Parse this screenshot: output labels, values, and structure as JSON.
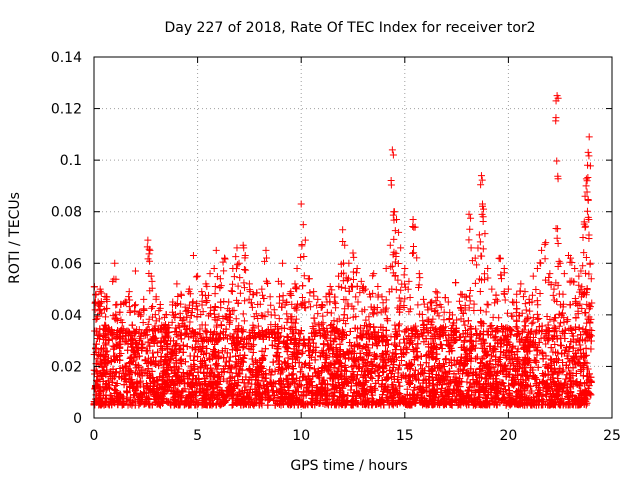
{
  "chart_data": {
    "type": "scatter",
    "title": "Day 227 of 2018, Rate Of TEC Index for receiver tor2",
    "xlabel": "GPS time / hours",
    "ylabel": "ROTI / TECUs",
    "xlim": [
      0,
      25
    ],
    "ylim": [
      0,
      0.14
    ],
    "xticks": [
      0,
      5,
      10,
      15,
      20,
      25
    ],
    "xtick_labels": [
      "0",
      "5",
      "10",
      "15",
      "20",
      "25"
    ],
    "yticks": [
      0,
      0.02,
      0.04,
      0.06,
      0.08,
      0.1,
      0.12,
      0.14
    ],
    "ytick_labels": [
      "0",
      "0.02",
      "0.04",
      "0.06",
      "0.08",
      "0.1",
      "0.12",
      "0.14"
    ],
    "grid": true,
    "marker": "+",
    "color": "#ff0000",
    "series": [
      {
        "name": "ROTI",
        "points": [
          [
            0.1,
            0.048
          ],
          [
            0.2,
            0.045
          ],
          [
            0.3,
            0.05
          ],
          [
            0.5,
            0.042
          ],
          [
            0.6,
            0.046
          ],
          [
            0.7,
            0.035
          ],
          [
            0.9,
            0.053
          ],
          [
            1.0,
            0.06
          ],
          [
            1.1,
            0.044
          ],
          [
            1.3,
            0.038
          ],
          [
            1.5,
            0.045
          ],
          [
            1.7,
            0.049
          ],
          [
            1.8,
            0.032
          ],
          [
            2.0,
            0.057
          ],
          [
            2.2,
            0.041
          ],
          [
            2.4,
            0.046
          ],
          [
            2.6,
            0.069
          ],
          [
            2.7,
            0.065
          ],
          [
            2.8,
            0.053
          ],
          [
            3.0,
            0.047
          ],
          [
            3.2,
            0.044
          ],
          [
            3.4,
            0.039
          ],
          [
            3.6,
            0.036
          ],
          [
            3.8,
            0.045
          ],
          [
            4.0,
            0.052
          ],
          [
            4.2,
            0.048
          ],
          [
            4.4,
            0.043
          ],
          [
            4.6,
            0.05
          ],
          [
            4.8,
            0.063
          ],
          [
            5.0,
            0.055
          ],
          [
            5.2,
            0.049
          ],
          [
            5.4,
            0.052
          ],
          [
            5.6,
            0.056
          ],
          [
            5.8,
            0.058
          ],
          [
            5.9,
            0.065
          ],
          [
            6.1,
            0.054
          ],
          [
            6.3,
            0.062
          ],
          [
            6.5,
            0.045
          ],
          [
            6.7,
            0.058
          ],
          [
            6.9,
            0.066
          ],
          [
            7.0,
            0.06
          ],
          [
            7.2,
            0.067
          ],
          [
            7.3,
            0.063
          ],
          [
            7.5,
            0.052
          ],
          [
            7.7,
            0.048
          ],
          [
            7.9,
            0.044
          ],
          [
            8.1,
            0.05
          ],
          [
            8.3,
            0.065
          ],
          [
            8.5,
            0.047
          ],
          [
            8.7,
            0.042
          ],
          [
            8.9,
            0.053
          ],
          [
            9.1,
            0.06
          ],
          [
            9.3,
            0.045
          ],
          [
            9.5,
            0.049
          ],
          [
            9.7,
            0.052
          ],
          [
            9.8,
            0.058
          ],
          [
            10.0,
            0.083
          ],
          [
            10.1,
            0.075
          ],
          [
            10.2,
            0.069
          ],
          [
            10.4,
            0.054
          ],
          [
            10.6,
            0.049
          ],
          [
            10.8,
            0.046
          ],
          [
            11.0,
            0.044
          ],
          [
            11.2,
            0.047
          ],
          [
            11.4,
            0.051
          ],
          [
            11.6,
            0.045
          ],
          [
            11.8,
            0.055
          ],
          [
            12.0,
            0.073
          ],
          [
            12.1,
            0.067
          ],
          [
            12.3,
            0.06
          ],
          [
            12.5,
            0.064
          ],
          [
            12.7,
            0.058
          ],
          [
            12.9,
            0.053
          ],
          [
            13.1,
            0.05
          ],
          [
            13.3,
            0.048
          ],
          [
            13.5,
            0.056
          ],
          [
            13.7,
            0.051
          ],
          [
            13.9,
            0.047
          ],
          [
            14.1,
            0.058
          ],
          [
            14.3,
            0.067
          ],
          [
            14.4,
            0.104
          ],
          [
            14.45,
            0.102
          ],
          [
            14.5,
            0.08
          ],
          [
            14.6,
            0.077
          ],
          [
            14.7,
            0.072
          ],
          [
            14.8,
            0.066
          ],
          [
            15.0,
            0.058
          ],
          [
            15.2,
            0.053
          ],
          [
            15.4,
            0.077
          ],
          [
            15.5,
            0.074
          ],
          [
            15.7,
            0.056
          ],
          [
            15.9,
            0.046
          ],
          [
            16.1,
            0.043
          ],
          [
            16.3,
            0.045
          ],
          [
            16.5,
            0.049
          ],
          [
            16.7,
            0.044
          ],
          [
            16.9,
            0.041
          ],
          [
            17.1,
            0.045
          ],
          [
            17.3,
            0.04
          ],
          [
            17.5,
            0.038
          ],
          [
            17.7,
            0.048
          ],
          [
            17.9,
            0.047
          ],
          [
            18.1,
            0.079
          ],
          [
            18.2,
            0.066
          ],
          [
            18.4,
            0.062
          ],
          [
            18.6,
            0.071
          ],
          [
            18.7,
            0.094
          ],
          [
            18.75,
            0.083
          ],
          [
            18.8,
            0.081
          ],
          [
            19.0,
            0.058
          ],
          [
            19.2,
            0.05
          ],
          [
            19.4,
            0.046
          ],
          [
            19.6,
            0.062
          ],
          [
            19.8,
            0.058
          ],
          [
            20.0,
            0.05
          ],
          [
            20.2,
            0.045
          ],
          [
            20.4,
            0.048
          ],
          [
            20.6,
            0.052
          ],
          [
            20.8,
            0.049
          ],
          [
            21.0,
            0.046
          ],
          [
            21.2,
            0.055
          ],
          [
            21.4,
            0.058
          ],
          [
            21.6,
            0.065
          ],
          [
            21.8,
            0.068
          ],
          [
            22.0,
            0.056
          ],
          [
            22.2,
            0.05
          ],
          [
            22.3,
            0.123
          ],
          [
            22.35,
            0.125
          ],
          [
            22.4,
            0.124
          ],
          [
            22.5,
            0.06
          ],
          [
            22.7,
            0.056
          ],
          [
            22.9,
            0.063
          ],
          [
            23.0,
            0.062
          ],
          [
            23.2,
            0.058
          ],
          [
            23.4,
            0.055
          ],
          [
            23.5,
            0.057
          ],
          [
            23.6,
            0.07
          ],
          [
            23.7,
            0.086
          ],
          [
            23.75,
            0.09
          ],
          [
            23.8,
            0.092
          ],
          [
            23.82,
            0.098
          ],
          [
            23.85,
            0.103
          ],
          [
            23.9,
            0.109
          ],
          [
            23.95,
            0.06
          ],
          [
            24.0,
            0.054
          ]
        ],
        "dense_band": {
          "x_range": [
            0,
            24
          ],
          "baseline_min": 0.005,
          "typical_max": 0.035
        }
      }
    ]
  }
}
